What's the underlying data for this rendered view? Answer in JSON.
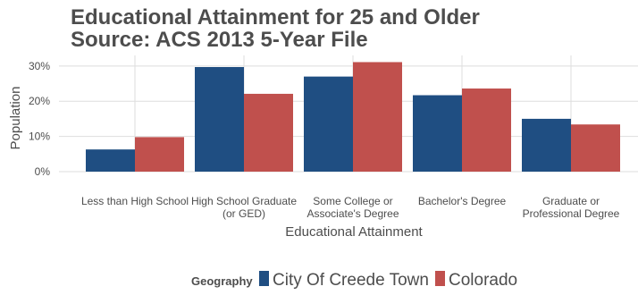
{
  "chart_data": {
    "type": "bar",
    "title_lines": [
      "Educational Attainment for 25 and Older",
      "Source: ACS 2013 5-Year File"
    ],
    "xlabel": "Educational Attainment",
    "ylabel": "Population",
    "ylim": [
      0,
      0.33
    ],
    "yticks": [
      0,
      0.1,
      0.2,
      0.3
    ],
    "ytick_labels": [
      "0%",
      "10%",
      "20%",
      "30%"
    ],
    "categories": [
      [
        "Less than High School"
      ],
      [
        "High School Graduate",
        "(or GED)"
      ],
      [
        "Some College or",
        "Associate's Degree"
      ],
      [
        "Bachelor's Degree"
      ],
      [
        "Graduate or",
        "Professional Degree"
      ]
    ],
    "series": [
      {
        "name": "City Of Creede Town",
        "color": "#1f4e82",
        "values": [
          0.063,
          0.297,
          0.27,
          0.217,
          0.15
        ]
      },
      {
        "name": "Colorado",
        "color": "#c0504d",
        "values": [
          0.098,
          0.221,
          0.311,
          0.236,
          0.134
        ]
      }
    ],
    "grid": true,
    "legend_title": "Geography",
    "legend_position": "bottom"
  }
}
